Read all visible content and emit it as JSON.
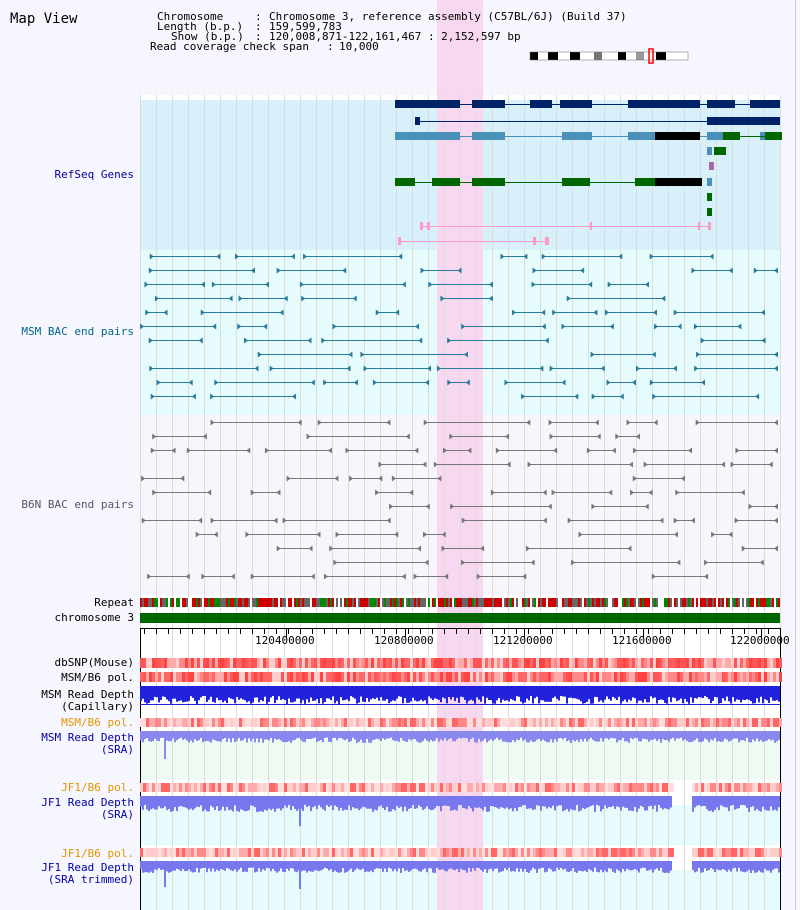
{
  "title": "Map View",
  "header": {
    "chromosome_key": "Chromosome",
    "chromosome_val": "Chromosome 3, reference assembly (C57BL/6J) (Build 37)",
    "length_key": "Length (b.p.)",
    "length_val": "159,599,783",
    "show_key": "Show (b.p.)",
    "show_val": "120,008,871-122,161,467 : 2,152,597 bp",
    "coverage_key": "Read coverage check span",
    "coverage_val": "10,000"
  },
  "tracks": {
    "refseq": "RefSeq Genes",
    "msm_bac": "MSM BAC end pairs",
    "b6n_bac": "B6N BAC end pairs",
    "repeat": "Repeat",
    "chromosome": "chromosome 3",
    "dbsnp": "dbSNP(Mouse)",
    "msm_b6_pol": "MSM/B6 pol.",
    "msm_depth_cap_1": "MSM Read Depth",
    "msm_depth_cap_2": "(Capillary)",
    "msm_b6_pol_sra": "MSM/B6 pol.",
    "msm_depth_sra_1": "MSM Read Depth",
    "msm_depth_sra_2": "(SRA)",
    "jf1_b6_pol": "JF1/B6 pol.",
    "jf1_depth_1": "JF1 Read Depth",
    "jf1_depth_2": "(SRA)",
    "jf1_b6_pol_t": "JF1/B6 pol.",
    "jf1_depth_t_1": "JF1 Read Depth",
    "jf1_depth_t_2": "(SRA trimmed)"
  },
  "axis": {
    "ticks": [
      "120400000",
      "120800000",
      "121200000",
      "121600000",
      "122000000"
    ]
  },
  "colors": {
    "refseq_bg": "#d8f0fa",
    "msm_bg": "#e6fbfb",
    "b6n_bg": "#f6f6fc",
    "highlight": "#f8d8f0",
    "refseq_label": "#000099",
    "msm_label": "#006688",
    "b6n_label": "#555566",
    "pol_orange": "#e69500",
    "depth_blue": "#0000aa",
    "chromosome_green": "#006600"
  }
}
